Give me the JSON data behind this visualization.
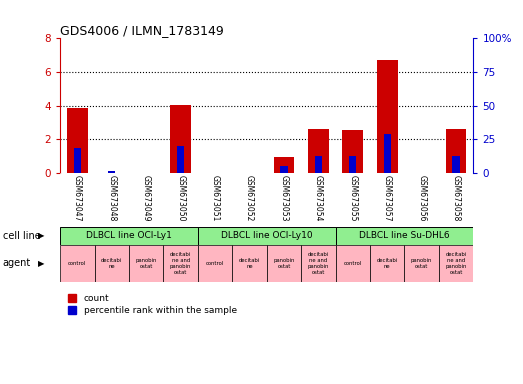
{
  "title": "GDS4006 / ILMN_1783149",
  "samples": [
    "GSM673047",
    "GSM673048",
    "GSM673049",
    "GSM673050",
    "GSM673051",
    "GSM673052",
    "GSM673053",
    "GSM673054",
    "GSM673055",
    "GSM673057",
    "GSM673056",
    "GSM673058"
  ],
  "count_values": [
    3.85,
    0.0,
    0.0,
    4.02,
    0.0,
    0.0,
    0.97,
    2.62,
    2.55,
    6.72,
    0.0,
    2.63
  ],
  "percentile_values": [
    1.5,
    0.12,
    0.0,
    1.6,
    0.0,
    0.0,
    0.45,
    1.0,
    1.0,
    2.3,
    0.0,
    1.0
  ],
  "ylim_left": [
    0,
    8
  ],
  "ylim_right": [
    0,
    100
  ],
  "yticks_left": [
    0,
    2,
    4,
    6,
    8
  ],
  "yticks_right": [
    0,
    25,
    50,
    75,
    100
  ],
  "ytick_labels_left": [
    "0",
    "2",
    "4",
    "6",
    "8"
  ],
  "ytick_labels_right": [
    "0",
    "25",
    "50",
    "75",
    "100%"
  ],
  "cell_groups": [
    {
      "label": "DLBCL line OCI-Ly1",
      "start": 0,
      "end": 3,
      "color": "#90EE90"
    },
    {
      "label": "DLBCL line OCI-Ly10",
      "start": 4,
      "end": 7,
      "color": "#90EE90"
    },
    {
      "label": "DLBCL line Su-DHL6",
      "start": 8,
      "end": 11,
      "color": "#90EE90"
    }
  ],
  "agent_labels": [
    "control",
    "decitabi\nne",
    "panobin\nostat",
    "decitabi\nne and\npanobin\nostat",
    "control",
    "decitabi\nne",
    "panobin\nostat",
    "decitabi\nne and\npanobin\nostat",
    "control",
    "decitabi\nne",
    "panobin\nostat",
    "decitabi\nne and\npanobin\nostat"
  ],
  "agent_color": "#FFB6C1",
  "bar_width": 0.6,
  "count_color": "#CC0000",
  "percentile_color": "#0000CC",
  "tick_color_left": "#CC0000",
  "tick_color_right": "#0000CC",
  "bg_color": "#FFFFFF",
  "sample_bg_color": "#C8C8C8",
  "cell_line_label": "cell line",
  "agent_label": "agent",
  "legend_count": "count",
  "legend_pct": "percentile rank within the sample",
  "grid_yticks": [
    2,
    4,
    6
  ]
}
